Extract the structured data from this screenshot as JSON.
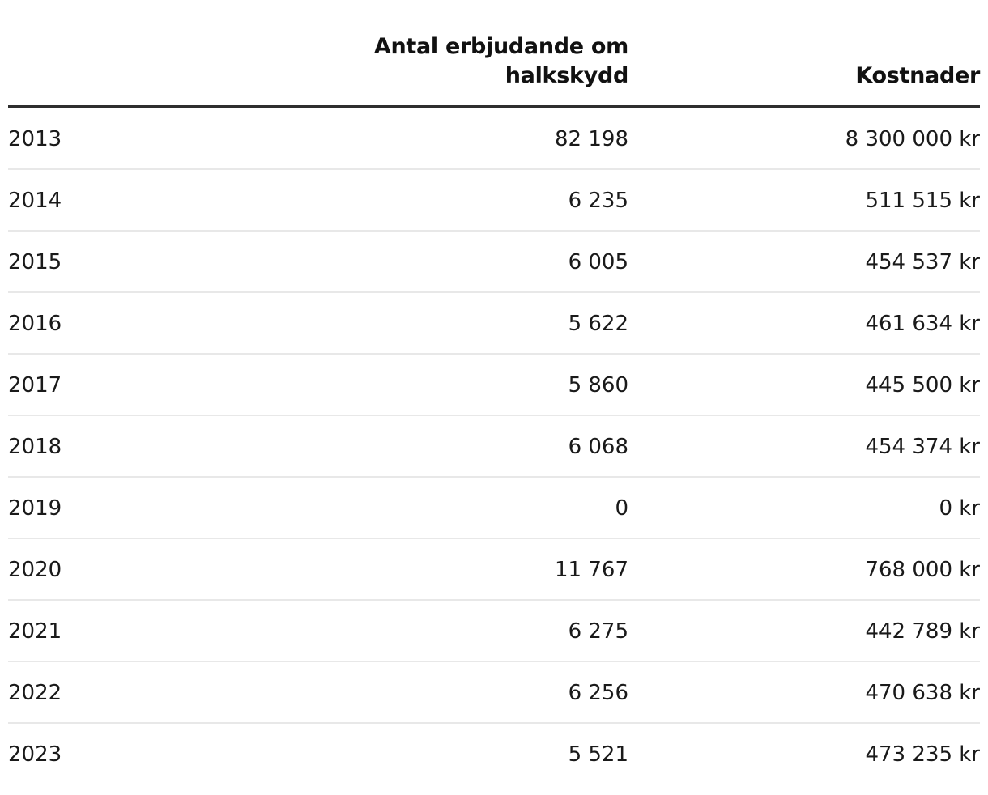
{
  "chart_data": {
    "type": "table",
    "columns": [
      "",
      "Antal erbjudande om halkskydd",
      "Kostnader"
    ],
    "rows": [
      {
        "year": "2013",
        "count": "82 198",
        "cost": "8 300 000 kr"
      },
      {
        "year": "2014",
        "count": "6 235",
        "cost": "511 515 kr"
      },
      {
        "year": "2015",
        "count": "6 005",
        "cost": "454 537 kr"
      },
      {
        "year": "2016",
        "count": "5 622",
        "cost": "461 634 kr"
      },
      {
        "year": "2017",
        "count": "5 860",
        "cost": "445 500 kr"
      },
      {
        "year": "2018",
        "count": "6 068",
        "cost": "454 374 kr"
      },
      {
        "year": "2019",
        "count": "0",
        "cost": "0 kr"
      },
      {
        "year": "2020",
        "count": "11 767",
        "cost": "768 000 kr"
      },
      {
        "year": "2021",
        "count": "6 275",
        "cost": "442 789 kr"
      },
      {
        "year": "2022",
        "count": "6 256",
        "cost": "470 638 kr"
      },
      {
        "year": "2023",
        "count": "5 521",
        "cost": "473 235 kr"
      }
    ]
  }
}
